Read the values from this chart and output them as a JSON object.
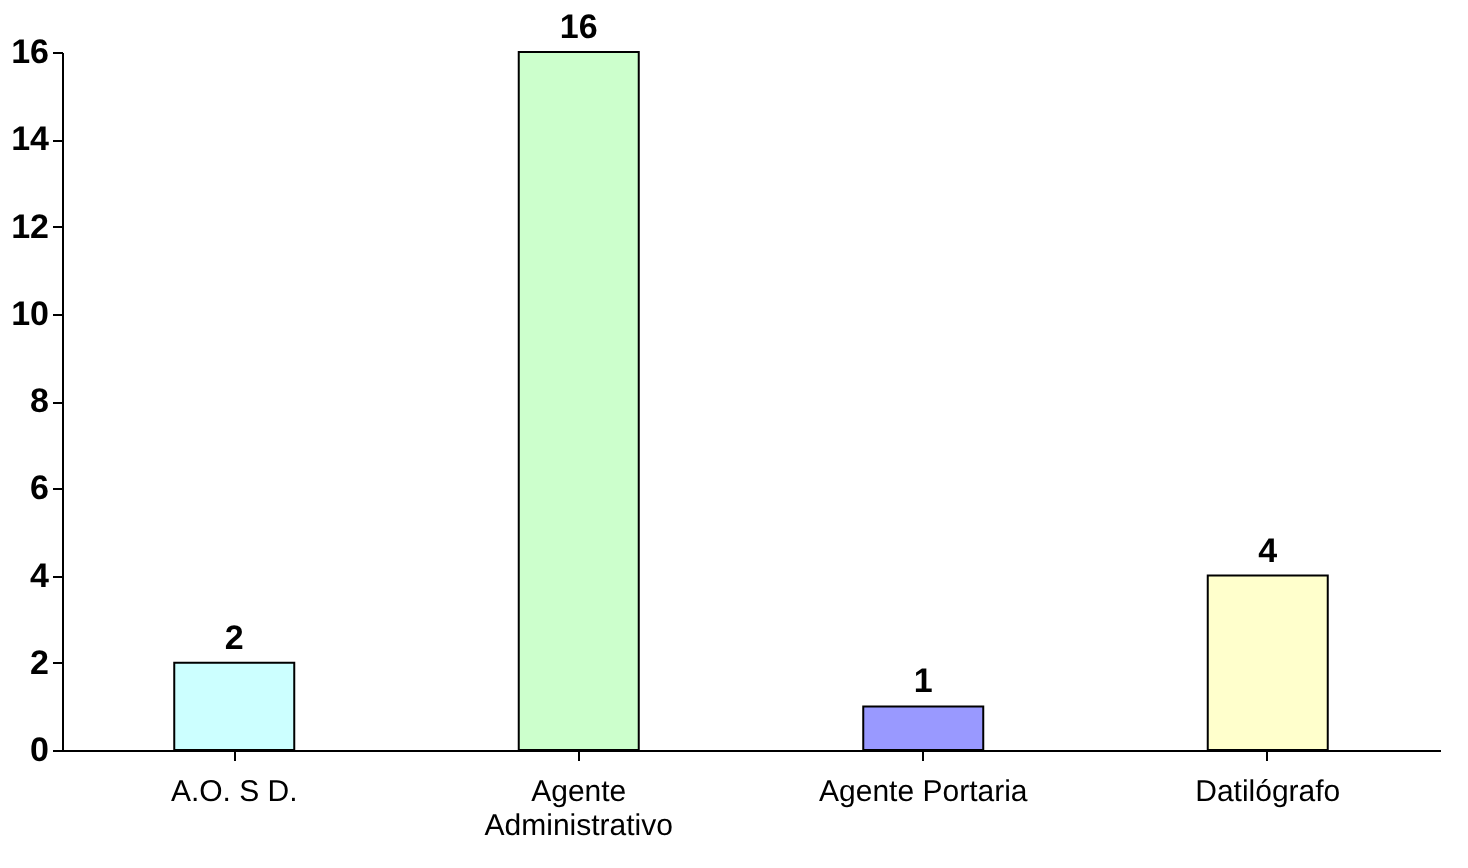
{
  "chart_data": {
    "type": "bar",
    "categories": [
      "A.O. S D.",
      "Agente Administrativo",
      "Agente Portaria",
      "Datilógrafo"
    ],
    "values": [
      2,
      16,
      1,
      4
    ],
    "colors": [
      "#ccffff",
      "#ccffcc",
      "#9999ff",
      "#ffffcc"
    ],
    "ylim": [
      0,
      16
    ],
    "yticks": [
      0,
      2,
      4,
      6,
      8,
      10,
      12,
      14,
      16
    ],
    "grid": false,
    "legend": false,
    "data_labels": true
  }
}
